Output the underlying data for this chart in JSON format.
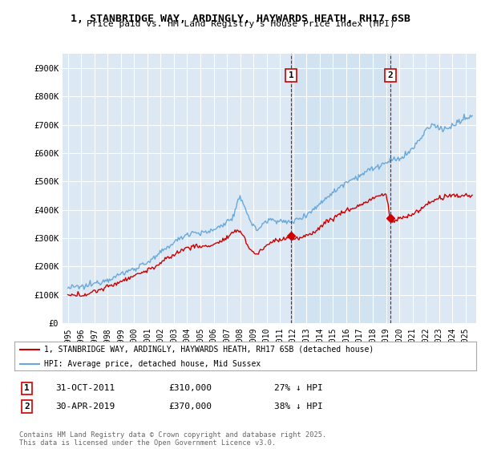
{
  "title1": "1, STANBRIDGE WAY, ARDINGLY, HAYWARDS HEATH, RH17 6SB",
  "title2": "Price paid vs. HM Land Registry's House Price Index (HPI)",
  "bg_color": "#dce9f5",
  "shaded_color": "#d0e4f4",
  "grid_color": "#ffffff",
  "red_color": "#cc0000",
  "blue_color": "#6aa8d8",
  "marker1_date_x": 2011.83,
  "marker2_date_x": 2019.33,
  "marker1_label": "1",
  "marker2_label": "2",
  "legend_line1": "1, STANBRIDGE WAY, ARDINGLY, HAYWARDS HEATH, RH17 6SB (detached house)",
  "legend_line2": "HPI: Average price, detached house, Mid Sussex",
  "annot1_date": "31-OCT-2011",
  "annot1_price": "£310,000",
  "annot1_hpi": "27% ↓ HPI",
  "annot2_date": "30-APR-2019",
  "annot2_price": "£370,000",
  "annot2_hpi": "38% ↓ HPI",
  "footer": "Contains HM Land Registry data © Crown copyright and database right 2025.\nThis data is licensed under the Open Government Licence v3.0.",
  "ylim": [
    0,
    950000
  ],
  "yticks": [
    0,
    100000,
    200000,
    300000,
    400000,
    500000,
    600000,
    700000,
    800000,
    900000
  ],
  "ytick_labels": [
    "£0",
    "£100K",
    "£200K",
    "£300K",
    "£400K",
    "£500K",
    "£600K",
    "£700K",
    "£800K",
    "£900K"
  ],
  "xlim_start": 1994.6,
  "xlim_end": 2025.8,
  "xticks": [
    1995,
    1996,
    1997,
    1998,
    1999,
    2000,
    2001,
    2002,
    2003,
    2004,
    2005,
    2006,
    2007,
    2008,
    2009,
    2010,
    2011,
    2012,
    2013,
    2014,
    2015,
    2016,
    2017,
    2018,
    2019,
    2020,
    2021,
    2022,
    2023,
    2024,
    2025
  ],
  "hpi_anchors": [
    [
      1995.0,
      125000
    ],
    [
      1995.5,
      127000
    ],
    [
      1996.0,
      128000
    ],
    [
      1996.5,
      132000
    ],
    [
      1997.0,
      140000
    ],
    [
      1997.5,
      148000
    ],
    [
      1998.0,
      155000
    ],
    [
      1998.5,
      163000
    ],
    [
      1999.0,
      173000
    ],
    [
      1999.5,
      183000
    ],
    [
      2000.0,
      192000
    ],
    [
      2000.5,
      205000
    ],
    [
      2001.0,
      215000
    ],
    [
      2001.5,
      228000
    ],
    [
      2002.0,
      248000
    ],
    [
      2002.5,
      268000
    ],
    [
      2003.0,
      285000
    ],
    [
      2003.5,
      300000
    ],
    [
      2004.0,
      315000
    ],
    [
      2004.5,
      322000
    ],
    [
      2005.0,
      318000
    ],
    [
      2005.5,
      320000
    ],
    [
      2006.0,
      330000
    ],
    [
      2006.5,
      342000
    ],
    [
      2007.0,
      358000
    ],
    [
      2007.5,
      375000
    ],
    [
      2007.8,
      425000
    ],
    [
      2008.0,
      440000
    ],
    [
      2008.3,
      420000
    ],
    [
      2008.6,
      380000
    ],
    [
      2009.0,
      340000
    ],
    [
      2009.3,
      330000
    ],
    [
      2009.6,
      345000
    ],
    [
      2010.0,
      360000
    ],
    [
      2010.5,
      368000
    ],
    [
      2011.0,
      360000
    ],
    [
      2011.5,
      355000
    ],
    [
      2012.0,
      360000
    ],
    [
      2012.5,
      370000
    ],
    [
      2013.0,
      385000
    ],
    [
      2013.5,
      400000
    ],
    [
      2014.0,
      420000
    ],
    [
      2014.5,
      445000
    ],
    [
      2015.0,
      460000
    ],
    [
      2015.5,
      480000
    ],
    [
      2016.0,
      500000
    ],
    [
      2016.5,
      510000
    ],
    [
      2017.0,
      520000
    ],
    [
      2017.5,
      535000
    ],
    [
      2018.0,
      545000
    ],
    [
      2018.5,
      555000
    ],
    [
      2019.0,
      565000
    ],
    [
      2019.5,
      575000
    ],
    [
      2020.0,
      580000
    ],
    [
      2020.5,
      595000
    ],
    [
      2021.0,
      615000
    ],
    [
      2021.5,
      645000
    ],
    [
      2022.0,
      680000
    ],
    [
      2022.5,
      700000
    ],
    [
      2023.0,
      690000
    ],
    [
      2023.5,
      685000
    ],
    [
      2024.0,
      695000
    ],
    [
      2024.5,
      710000
    ],
    [
      2025.0,
      720000
    ],
    [
      2025.5,
      730000
    ]
  ],
  "red_anchors": [
    [
      1995.0,
      97000
    ],
    [
      1995.5,
      98000
    ],
    [
      1996.0,
      100000
    ],
    [
      1996.5,
      104000
    ],
    [
      1997.0,
      112000
    ],
    [
      1997.5,
      120000
    ],
    [
      1998.0,
      128000
    ],
    [
      1998.5,
      138000
    ],
    [
      1999.0,
      148000
    ],
    [
      1999.5,
      158000
    ],
    [
      2000.0,
      168000
    ],
    [
      2000.5,
      178000
    ],
    [
      2001.0,
      187000
    ],
    [
      2001.5,
      198000
    ],
    [
      2002.0,
      212000
    ],
    [
      2002.5,
      228000
    ],
    [
      2003.0,
      242000
    ],
    [
      2003.5,
      255000
    ],
    [
      2004.0,
      267000
    ],
    [
      2004.5,
      272000
    ],
    [
      2005.0,
      270000
    ],
    [
      2005.5,
      272000
    ],
    [
      2006.0,
      278000
    ],
    [
      2006.5,
      288000
    ],
    [
      2007.0,
      300000
    ],
    [
      2007.5,
      318000
    ],
    [
      2007.8,
      330000
    ],
    [
      2008.0,
      325000
    ],
    [
      2008.3,
      305000
    ],
    [
      2008.6,
      270000
    ],
    [
      2009.0,
      248000
    ],
    [
      2009.3,
      245000
    ],
    [
      2009.6,
      258000
    ],
    [
      2010.0,
      275000
    ],
    [
      2010.5,
      290000
    ],
    [
      2011.0,
      295000
    ],
    [
      2011.5,
      300000
    ],
    [
      2011.83,
      310000
    ],
    [
      2012.0,
      295000
    ],
    [
      2012.5,
      300000
    ],
    [
      2013.0,
      308000
    ],
    [
      2013.5,
      320000
    ],
    [
      2014.0,
      338000
    ],
    [
      2014.5,
      358000
    ],
    [
      2015.0,
      370000
    ],
    [
      2015.5,
      385000
    ],
    [
      2016.0,
      398000
    ],
    [
      2016.5,
      405000
    ],
    [
      2017.0,
      415000
    ],
    [
      2017.5,
      428000
    ],
    [
      2018.0,
      440000
    ],
    [
      2018.5,
      450000
    ],
    [
      2019.0,
      455000
    ],
    [
      2019.33,
      370000
    ],
    [
      2019.5,
      355000
    ],
    [
      2019.8,
      365000
    ],
    [
      2020.0,
      370000
    ],
    [
      2020.5,
      375000
    ],
    [
      2021.0,
      385000
    ],
    [
      2021.5,
      398000
    ],
    [
      2022.0,
      415000
    ],
    [
      2022.5,
      432000
    ],
    [
      2023.0,
      440000
    ],
    [
      2023.5,
      445000
    ],
    [
      2024.0,
      450000
    ],
    [
      2024.5,
      448000
    ],
    [
      2025.0,
      452000
    ],
    [
      2025.5,
      450000
    ]
  ]
}
